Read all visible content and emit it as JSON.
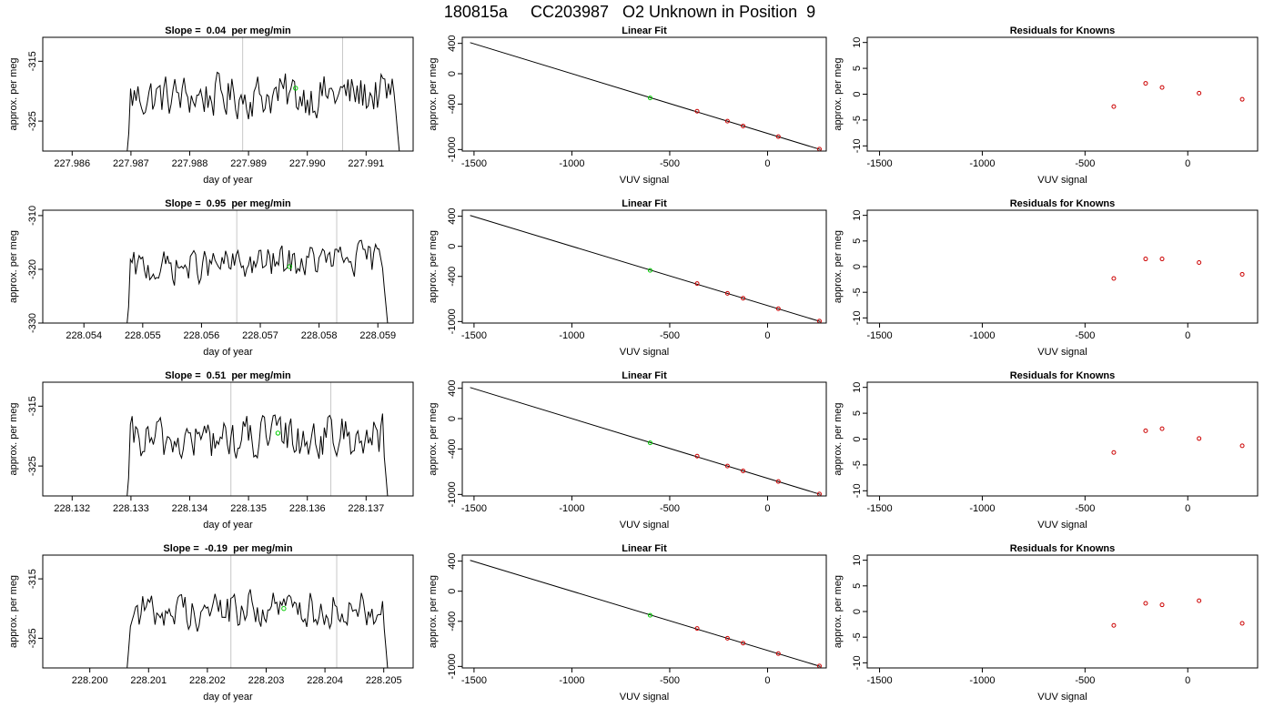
{
  "page_title": "180815a     CC203987   O2 Unknown in Position  9",
  "colors": {
    "trace": "#000000",
    "unknown_point": "#00cc00",
    "known_point": "#cc0000",
    "guide_line": "#c8c8c8"
  },
  "chart_data": [
    {
      "type": "line",
      "title": "Slope =  0.04  per meg/min",
      "xlabel": "day of year",
      "ylabel": "approx. per meg",
      "xlim": [
        227.9855,
        227.9918
      ],
      "ylim": [
        -330,
        -311
      ],
      "xticks": [
        227.986,
        227.987,
        227.988,
        227.989,
        227.99,
        227.991
      ],
      "xtick_labels": [
        "227.986",
        "227.987",
        "227.988",
        "227.989",
        "227.990",
        "227.991"
      ],
      "yticks": [
        -315,
        -325
      ],
      "ytick_labels": [
        "-315",
        "-325"
      ],
      "xstart": 227.9869,
      "xend": 227.9916,
      "trace_base": -321,
      "trace_amplitude": 3,
      "trace_trend": 0.5,
      "guide_lines_x": [
        227.9889,
        227.9906
      ],
      "unknown_point": {
        "x": 227.9898,
        "y": -319.5
      }
    },
    {
      "type": "scatter",
      "title": "Linear Fit",
      "xlabel": "VUV signal",
      "ylabel": "approx. per meg",
      "xlim": [
        -1560,
        300
      ],
      "ylim": [
        -1020,
        480
      ],
      "xticks": [
        -1500,
        -1000,
        -500,
        0
      ],
      "xtick_labels": [
        "-1500",
        "-1000",
        "-500",
        "0"
      ],
      "yticks": [
        400,
        0,
        -400,
        -1000
      ],
      "ytick_labels": [
        "400",
        "0",
        "-400",
        "-1000"
      ],
      "fit_line": {
        "x1": -1520,
        "y1": 410,
        "x2": 270,
        "y2": -1000
      },
      "unknown_point": {
        "x": -600,
        "y": -320
      },
      "known_points": [
        {
          "x": -360,
          "y": -495
        },
        {
          "x": -205,
          "y": -625
        },
        {
          "x": -125,
          "y": -690
        },
        {
          "x": 55,
          "y": -830
        },
        {
          "x": 265,
          "y": -995
        }
      ]
    },
    {
      "type": "scatter",
      "title": "Residuals for Knowns",
      "xlabel": "VUV signal",
      "ylabel": "approx. per meg",
      "xlim": [
        -1560,
        340
      ],
      "ylim": [
        -11,
        11
      ],
      "xticks": [
        -1500,
        -1000,
        -500,
        0
      ],
      "xtick_labels": [
        "-1500",
        "-1000",
        "-500",
        "0"
      ],
      "yticks": [
        10,
        5,
        0,
        -5,
        -10
      ],
      "ytick_labels": [
        "10",
        "5",
        "0",
        "-5",
        "-10"
      ],
      "known_points": [
        {
          "x": -360,
          "y": -2.4
        },
        {
          "x": -205,
          "y": 2.1
        },
        {
          "x": -125,
          "y": 1.3
        },
        {
          "x": 55,
          "y": 0.2
        },
        {
          "x": 265,
          "y": -1.0
        }
      ]
    },
    {
      "type": "line",
      "title": "Slope =  0.95  per meg/min",
      "xlabel": "day of year",
      "ylabel": "approx. per meg",
      "xlim": [
        228.0533,
        228.0596
      ],
      "ylim": [
        -330,
        -309
      ],
      "xticks": [
        228.054,
        228.055,
        228.056,
        228.057,
        228.058,
        228.059
      ],
      "xtick_labels": [
        "228.054",
        "228.055",
        "228.056",
        "228.057",
        "228.058",
        "228.059"
      ],
      "yticks": [
        -310,
        -320,
        -330
      ],
      "ytick_labels": [
        "-310",
        "-320",
        "-330"
      ],
      "xstart": 228.0547,
      "xend": 228.0592,
      "trace_base": -320,
      "trace_amplitude": 2.5,
      "trace_trend": 2.0,
      "guide_lines_x": [
        228.0566,
        228.0583
      ],
      "unknown_point": {
        "x": 228.0575,
        "y": -319.5
      }
    },
    {
      "type": "scatter",
      "title": "Linear Fit",
      "xlabel": "VUV signal",
      "ylabel": "approx. per meg",
      "xlim": [
        -1560,
        300
      ],
      "ylim": [
        -1020,
        480
      ],
      "xticks": [
        -1500,
        -1000,
        -500,
        0
      ],
      "xtick_labels": [
        "-1500",
        "-1000",
        "-500",
        "0"
      ],
      "yticks": [
        400,
        0,
        -400,
        -1000
      ],
      "ytick_labels": [
        "400",
        "0",
        "-400",
        "-1000"
      ],
      "fit_line": {
        "x1": -1520,
        "y1": 410,
        "x2": 270,
        "y2": -1000
      },
      "unknown_point": {
        "x": -600,
        "y": -320
      },
      "known_points": [
        {
          "x": -360,
          "y": -495
        },
        {
          "x": -205,
          "y": -625
        },
        {
          "x": -125,
          "y": -690
        },
        {
          "x": 55,
          "y": -830
        },
        {
          "x": 265,
          "y": -995
        }
      ]
    },
    {
      "type": "scatter",
      "title": "Residuals for Knowns",
      "xlabel": "VUV signal",
      "ylabel": "approx. per meg",
      "xlim": [
        -1560,
        340
      ],
      "ylim": [
        -11,
        11
      ],
      "xticks": [
        -1500,
        -1000,
        -500,
        0
      ],
      "xtick_labels": [
        "-1500",
        "-1000",
        "-500",
        "0"
      ],
      "yticks": [
        10,
        5,
        0,
        -5,
        -10
      ],
      "ytick_labels": [
        "10",
        "5",
        "0",
        "-5",
        "-10"
      ],
      "known_points": [
        {
          "x": -360,
          "y": -2.3
        },
        {
          "x": -205,
          "y": 1.5
        },
        {
          "x": -125,
          "y": 1.5
        },
        {
          "x": 55,
          "y": 0.8
        },
        {
          "x": 265,
          "y": -1.5
        }
      ]
    },
    {
      "type": "line",
      "title": "Slope =  0.51  per meg/min",
      "xlabel": "day of year",
      "ylabel": "approx. per meg",
      "xlim": [
        228.1315,
        228.1378
      ],
      "ylim": [
        -330,
        -311
      ],
      "xticks": [
        228.132,
        228.133,
        228.134,
        228.135,
        228.136,
        228.137
      ],
      "xtick_labels": [
        "228.132",
        "228.133",
        "228.134",
        "228.135",
        "228.136",
        "228.137"
      ],
      "yticks": [
        -315,
        -325
      ],
      "ytick_labels": [
        "-315",
        "-325"
      ],
      "xstart": 228.1329,
      "xend": 228.1374,
      "trace_base": -321,
      "trace_amplitude": 3,
      "trace_trend": 1.2,
      "guide_lines_x": [
        228.1347,
        228.1364
      ],
      "unknown_point": {
        "x": 228.1355,
        "y": -319.5
      }
    },
    {
      "type": "scatter",
      "title": "Linear Fit",
      "xlabel": "VUV signal",
      "ylabel": "approx. per meg",
      "xlim": [
        -1560,
        300
      ],
      "ylim": [
        -1020,
        480
      ],
      "xticks": [
        -1500,
        -1000,
        -500,
        0
      ],
      "xtick_labels": [
        "-1500",
        "-1000",
        "-500",
        "0"
      ],
      "yticks": [
        400,
        0,
        -400,
        -1000
      ],
      "ytick_labels": [
        "400",
        "0",
        "-400",
        "-1000"
      ],
      "fit_line": {
        "x1": -1520,
        "y1": 410,
        "x2": 270,
        "y2": -1000
      },
      "unknown_point": {
        "x": -600,
        "y": -320
      },
      "known_points": [
        {
          "x": -360,
          "y": -495
        },
        {
          "x": -205,
          "y": -625
        },
        {
          "x": -125,
          "y": -690
        },
        {
          "x": 55,
          "y": -830
        },
        {
          "x": 265,
          "y": -995
        }
      ]
    },
    {
      "type": "scatter",
      "title": "Residuals for Knowns",
      "xlabel": "VUV signal",
      "ylabel": "approx. per meg",
      "xlim": [
        -1560,
        340
      ],
      "ylim": [
        -11,
        11
      ],
      "xticks": [
        -1500,
        -1000,
        -500,
        0
      ],
      "xtick_labels": [
        "-1500",
        "-1000",
        "-500",
        "0"
      ],
      "yticks": [
        10,
        5,
        0,
        -5,
        -10
      ],
      "ytick_labels": [
        "10",
        "5",
        "0",
        "-5",
        "-10"
      ],
      "known_points": [
        {
          "x": -360,
          "y": -2.6
        },
        {
          "x": -205,
          "y": 1.6
        },
        {
          "x": -125,
          "y": 2.0
        },
        {
          "x": 55,
          "y": 0.1
        },
        {
          "x": 265,
          "y": -1.3
        }
      ]
    },
    {
      "type": "line",
      "title": "Slope =  -0.19  per meg/min",
      "xlabel": "day of year",
      "ylabel": "approx. per meg",
      "xlim": [
        228.1992,
        228.2055
      ],
      "ylim": [
        -330,
        -311
      ],
      "xticks": [
        228.2,
        228.201,
        228.202,
        228.203,
        228.204,
        228.205
      ],
      "xtick_labels": [
        "228.200",
        "228.201",
        "228.202",
        "228.203",
        "228.204",
        "228.205"
      ],
      "yticks": [
        -315,
        -325
      ],
      "ytick_labels": [
        "-315",
        "-325"
      ],
      "xstart": 228.2006,
      "xend": 228.2051,
      "trace_base": -320.5,
      "trace_amplitude": 2.6,
      "trace_trend": 0.8,
      "guide_lines_x": [
        228.2024,
        228.2042
      ],
      "unknown_point": {
        "x": 228.2033,
        "y": -320
      }
    },
    {
      "type": "scatter",
      "title": "Linear Fit",
      "xlabel": "VUV signal",
      "ylabel": "approx. per meg",
      "xlim": [
        -1560,
        300
      ],
      "ylim": [
        -1020,
        480
      ],
      "xticks": [
        -1500,
        -1000,
        -500,
        0
      ],
      "xtick_labels": [
        "-1500",
        "-1000",
        "-500",
        "0"
      ],
      "yticks": [
        400,
        0,
        -400,
        -1000
      ],
      "ytick_labels": [
        "400",
        "0",
        "-400",
        "-1000"
      ],
      "fit_line": {
        "x1": -1520,
        "y1": 410,
        "x2": 270,
        "y2": -1000
      },
      "unknown_point": {
        "x": -600,
        "y": -320
      },
      "known_points": [
        {
          "x": -360,
          "y": -495
        },
        {
          "x": -205,
          "y": -625
        },
        {
          "x": -125,
          "y": -690
        },
        {
          "x": 55,
          "y": -830
        },
        {
          "x": 265,
          "y": -995
        }
      ]
    },
    {
      "type": "scatter",
      "title": "Residuals for Knowns",
      "xlabel": "VUV signal",
      "ylabel": "approx. per meg",
      "xlim": [
        -1560,
        340
      ],
      "ylim": [
        -11,
        11
      ],
      "xticks": [
        -1500,
        -1000,
        -500,
        0
      ],
      "xtick_labels": [
        "-1500",
        "-1000",
        "-500",
        "0"
      ],
      "yticks": [
        10,
        5,
        0,
        -5,
        -10
      ],
      "ytick_labels": [
        "10",
        "5",
        "0",
        "-5",
        "-10"
      ],
      "known_points": [
        {
          "x": -360,
          "y": -2.7
        },
        {
          "x": -205,
          "y": 1.6
        },
        {
          "x": -125,
          "y": 1.3
        },
        {
          "x": 55,
          "y": 2.1
        },
        {
          "x": 265,
          "y": -2.3
        }
      ]
    }
  ]
}
